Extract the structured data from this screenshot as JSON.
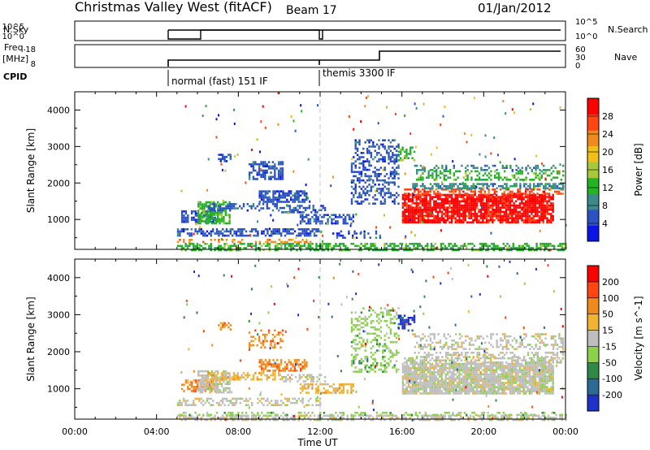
{
  "header": {
    "station": "Christmas Valley West (fitACF)",
    "beam": "Beam 17",
    "date": "01/Jan/2012"
  },
  "params": {
    "nsky_label": "N.Sky",
    "nsearch_label": "N.Search",
    "freq_label": "Freq.",
    "freq_unit": "[MHz]",
    "nave_label": "Nave",
    "cpid_label": "CPID",
    "cpid_modes": [
      {
        "label": "normal (fast) 151 IF",
        "start_hour": 5.0
      },
      {
        "label": "themis 3300 IF",
        "start_hour": 12.0
      }
    ],
    "nsky_ticks": [
      "10^5",
      "10^0"
    ],
    "nsearch_ticks": [
      "10^5",
      "10^0"
    ],
    "freq_ticks": [
      "18",
      "8"
    ],
    "nave_ticks": [
      "60",
      "30",
      "0"
    ]
  },
  "colors": {
    "bg": "#ffffff",
    "ink": "#000000",
    "no_data": "#ffffff",
    "ground_scatter": "#bebebe"
  },
  "chart_data": [
    {
      "type": "heatmap",
      "panel": "power",
      "xlabel": "Time UT",
      "ylabel": "Slant Range [km]",
      "xlim": [
        0,
        24
      ],
      "ylim": [
        180,
        4500
      ],
      "xticks": [
        "00:00",
        "04:00",
        "08:00",
        "12:00",
        "16:00",
        "20:00",
        "00:00"
      ],
      "xtick_hours": [
        0,
        4,
        8,
        12,
        16,
        20,
        24
      ],
      "yticks": [
        1000,
        2000,
        3000,
        4000
      ],
      "colorbar": {
        "label": "Power [dB]",
        "ticks": [
          "4",
          "8",
          "12",
          "16",
          "20",
          "24",
          "28"
        ],
        "range": [
          0,
          32
        ],
        "colors": [
          "#0a14e6",
          "#2b52c2",
          "#3d8a8a",
          "#22b422",
          "#a8c83c",
          "#f0c018",
          "#f08a1e",
          "#ff4612",
          "#ff0000"
        ]
      },
      "regions": [
        {
          "t": [
            5.0,
            24.0
          ],
          "r": [
            180,
            360
          ],
          "c": 3,
          "d": 0.55
        },
        {
          "t": [
            5.0,
            11.5
          ],
          "r": [
            360,
            470
          ],
          "c": 6,
          "d": 0.35
        },
        {
          "t": [
            5.0,
            12.0
          ],
          "r": [
            580,
            760
          ],
          "c": 1,
          "d": 0.6
        },
        {
          "t": [
            5.2,
            7.0
          ],
          "r": [
            950,
            1250
          ],
          "c": 1,
          "d": 0.7
        },
        {
          "t": [
            6.0,
            7.6
          ],
          "r": [
            900,
            1500
          ],
          "c": 3,
          "d": 0.75
        },
        {
          "t": [
            6.5,
            10.0
          ],
          "r": [
            1250,
            1450
          ],
          "c": 1,
          "d": 0.5
        },
        {
          "t": [
            9.0,
            11.3
          ],
          "r": [
            1500,
            1800
          ],
          "c": 1,
          "d": 0.7
        },
        {
          "t": [
            10.0,
            12.2
          ],
          "r": [
            1200,
            1400
          ],
          "c": 1,
          "d": 0.45
        },
        {
          "t": [
            11.0,
            13.6
          ],
          "r": [
            870,
            1150
          ],
          "c": 1,
          "d": 0.6
        },
        {
          "t": [
            7.0,
            7.6
          ],
          "r": [
            2600,
            2800
          ],
          "c": 1,
          "d": 0.6
        },
        {
          "t": [
            8.5,
            10.2
          ],
          "r": [
            2100,
            2600
          ],
          "c": 1,
          "d": 0.55
        },
        {
          "t": [
            12.5,
            15.0
          ],
          "r": [
            500,
            700
          ],
          "c": 1,
          "d": 0.3
        },
        {
          "t": [
            13.5,
            15.8
          ],
          "r": [
            1450,
            3200
          ],
          "c": 1,
          "d": 0.4
        },
        {
          "t": [
            15.8,
            16.6
          ],
          "r": [
            2600,
            3000
          ],
          "c": 3,
          "d": 0.5
        },
        {
          "t": [
            16.0,
            23.4
          ],
          "r": [
            900,
            1700
          ],
          "c": 8,
          "d": 0.85
        },
        {
          "t": [
            16.1,
            23.9
          ],
          "r": [
            1700,
            1850
          ],
          "c": 7,
          "d": 0.55
        },
        {
          "t": [
            16.5,
            23.9
          ],
          "r": [
            1850,
            2000
          ],
          "c": 2,
          "d": 0.6
        },
        {
          "t": [
            16.5,
            23.9
          ],
          "r": [
            2100,
            2350
          ],
          "c": 3,
          "d": 0.35
        },
        {
          "t": [
            16.5,
            23.9
          ],
          "r": [
            2350,
            2500
          ],
          "c": 2,
          "d": 0.35
        }
      ]
    },
    {
      "type": "heatmap",
      "panel": "velocity",
      "xlabel": "Time UT",
      "ylabel": "Slant Range [km]",
      "xlim": [
        0,
        24
      ],
      "ylim": [
        180,
        4500
      ],
      "xticks": [
        "00:00",
        "04:00",
        "08:00",
        "12:00",
        "16:00",
        "20:00",
        "00:00"
      ],
      "xtick_hours": [
        0,
        4,
        8,
        12,
        16,
        20,
        24
      ],
      "yticks": [
        1000,
        2000,
        3000,
        4000
      ],
      "colorbar": {
        "label": "Velocity [m s^-1]",
        "ticks": [
          "200",
          "100",
          "50",
          "15",
          "-15",
          "-50",
          "-100",
          "-200"
        ],
        "colors": [
          "#1e32c8",
          "#2e6a96",
          "#2e8a46",
          "#8ad24a",
          "#bebebe",
          "#f0b432",
          "#f08a1e",
          "#ff4612",
          "#ff0000"
        ]
      },
      "regions": [
        {
          "t": [
            5.0,
            24.0
          ],
          "r": [
            180,
            300
          ],
          "c": 4,
          "d": 0.55
        },
        {
          "t": [
            5.0,
            24.0
          ],
          "r": [
            300,
            380
          ],
          "c": 3,
          "d": 0.3
        },
        {
          "t": [
            5.0,
            12.0
          ],
          "r": [
            580,
            760
          ],
          "c": 4,
          "d": 0.45
        },
        {
          "t": [
            5.2,
            7.0
          ],
          "r": [
            950,
            1250
          ],
          "c": 6,
          "d": 0.5
        },
        {
          "t": [
            6.0,
            7.6
          ],
          "r": [
            900,
            1500
          ],
          "c": 4,
          "d": 0.75
        },
        {
          "t": [
            6.5,
            10.0
          ],
          "r": [
            1250,
            1450
          ],
          "c": 5,
          "d": 0.5
        },
        {
          "t": [
            9.0,
            11.3
          ],
          "r": [
            1500,
            1800
          ],
          "c": 6,
          "d": 0.6
        },
        {
          "t": [
            10.0,
            12.2
          ],
          "r": [
            1200,
            1400
          ],
          "c": 4,
          "d": 0.45
        },
        {
          "t": [
            11.0,
            13.6
          ],
          "r": [
            870,
            1150
          ],
          "c": 5,
          "d": 0.5
        },
        {
          "t": [
            7.0,
            7.6
          ],
          "r": [
            2600,
            2800
          ],
          "c": 6,
          "d": 0.5
        },
        {
          "t": [
            8.5,
            10.2
          ],
          "r": [
            2100,
            2600
          ],
          "c": 6,
          "d": 0.35
        },
        {
          "t": [
            13.5,
            15.8
          ],
          "r": [
            1450,
            3200
          ],
          "c": 3,
          "d": 0.3
        },
        {
          "t": [
            15.8,
            16.6
          ],
          "r": [
            2600,
            3000
          ],
          "c": 0,
          "d": 0.5
        },
        {
          "t": [
            16.0,
            23.4
          ],
          "r": [
            900,
            1700
          ],
          "c": 4,
          "d": 0.9
        },
        {
          "t": [
            16.1,
            23.9
          ],
          "r": [
            1700,
            1850
          ],
          "c": 4,
          "d": 0.55
        },
        {
          "t": [
            16.5,
            23.9
          ],
          "r": [
            1850,
            2000
          ],
          "c": 4,
          "d": 0.5
        },
        {
          "t": [
            16.5,
            23.9
          ],
          "r": [
            2100,
            2500
          ],
          "c": 4,
          "d": 0.35
        }
      ]
    }
  ]
}
